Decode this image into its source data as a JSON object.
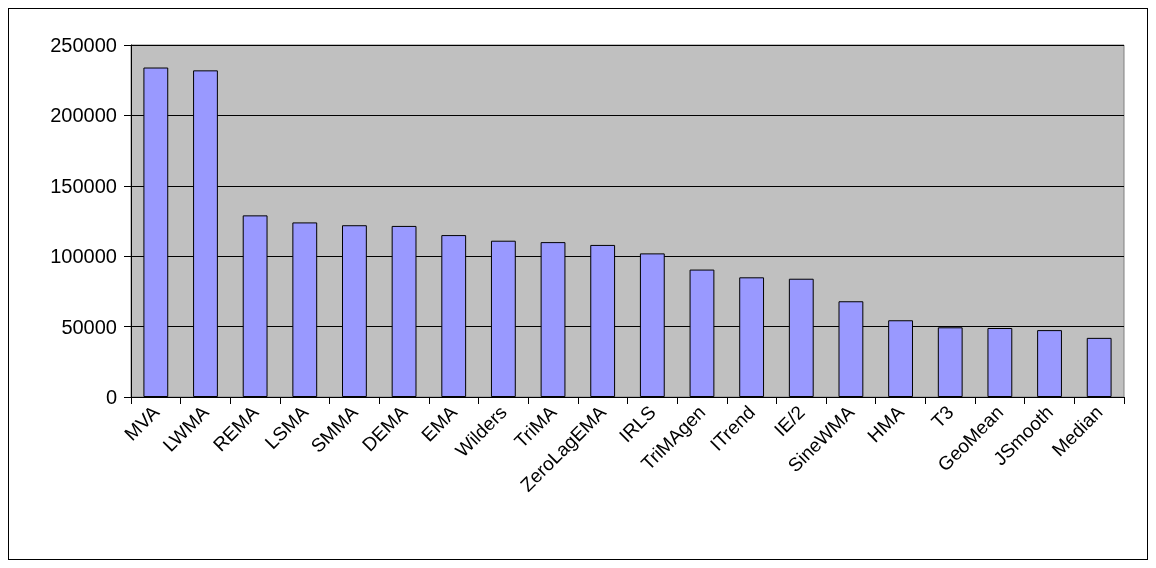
{
  "chart_data": {
    "type": "bar",
    "categories": [
      "MVA",
      "LWMA",
      "REMA",
      "LSMA",
      "SMMA",
      "DEMA",
      "EMA",
      "Wilders",
      "TriMA",
      "ZeroLagEMA",
      "IRLS",
      "TriMAgen",
      "ITrend",
      "IE/2",
      "SineWMA",
      "HMA",
      "T3",
      "GeoMean",
      "JSmooth",
      "Median"
    ],
    "values": [
      234000,
      232000,
      129000,
      124000,
      122000,
      121500,
      115000,
      111000,
      110000,
      108000,
      102000,
      90500,
      85000,
      84000,
      68000,
      54500,
      49500,
      49000,
      47500,
      42000
    ],
    "color": "#9999ff",
    "ylim": [
      0,
      250000
    ],
    "yticks": [
      0,
      50000,
      100000,
      150000,
      200000,
      250000
    ],
    "grid": "y"
  }
}
